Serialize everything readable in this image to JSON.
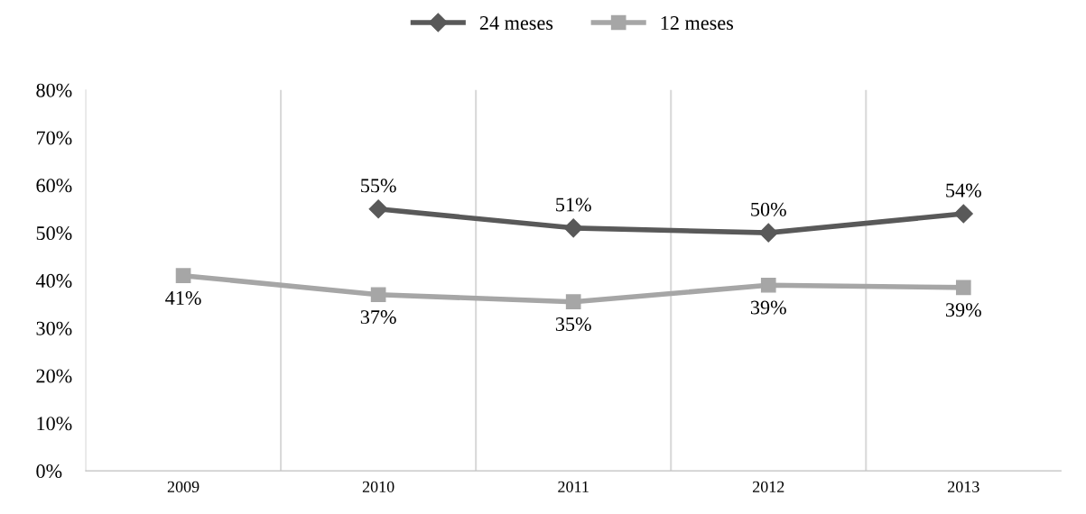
{
  "chart_data": {
    "type": "line",
    "categories": [
      "2009",
      "2010",
      "2011",
      "2012",
      "2013"
    ],
    "series": [
      {
        "name": "24 meses",
        "color": "#595959",
        "marker": "diamond",
        "values": [
          null,
          55,
          51,
          50,
          54
        ],
        "value_labels": [
          null,
          "55%",
          "51%",
          "50%",
          "54%"
        ]
      },
      {
        "name": "12 meses",
        "color": "#a6a6a6",
        "marker": "square",
        "values": [
          41,
          37,
          35.5,
          39,
          38.5
        ],
        "value_labels": [
          "41%",
          "37%",
          "35%",
          "39%",
          "39%"
        ]
      }
    ],
    "ylim": [
      0,
      80
    ],
    "yticks": [
      {
        "value": 0,
        "label": "0%"
      },
      {
        "value": 10,
        "label": "10%"
      },
      {
        "value": 20,
        "label": "20%"
      },
      {
        "value": 30,
        "label": "30%"
      },
      {
        "value": 40,
        "label": "40%"
      },
      {
        "value": 50,
        "label": "50%"
      },
      {
        "value": 60,
        "label": "60%"
      },
      {
        "value": 70,
        "label": "70%"
      },
      {
        "value": 80,
        "label": "80%"
      }
    ],
    "grid": "x",
    "legend": "top",
    "line_style": "solid"
  }
}
